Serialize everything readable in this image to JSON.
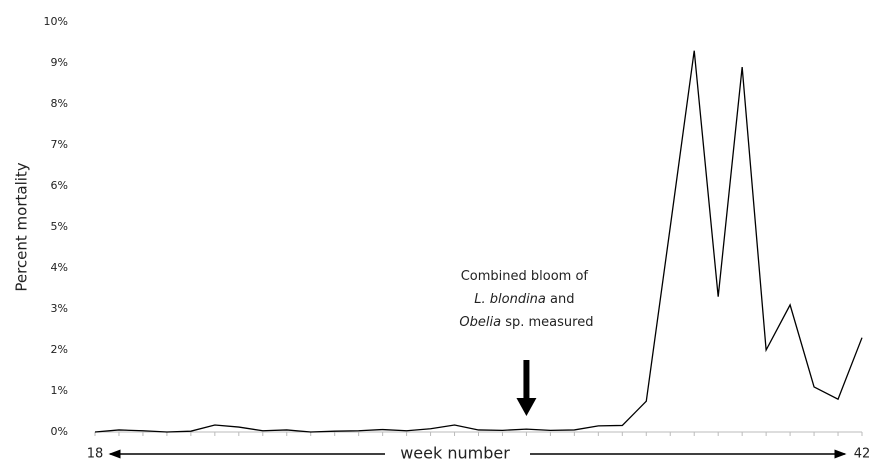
{
  "chart_data": {
    "type": "line",
    "y_label": "Percent mortality",
    "x_label": "week number",
    "categories": [
      "18",
      null,
      null,
      null,
      null,
      null,
      null,
      null,
      null,
      null,
      null,
      null,
      null,
      null,
      null,
      null,
      null,
      null,
      null,
      null,
      null,
      null,
      null,
      null,
      null,
      null,
      null,
      null,
      null,
      null,
      null,
      null,
      "42"
    ],
    "series": [
      {
        "color": "#000000",
        "values": [
          0.0,
          0.05,
          0.03,
          0.0,
          0.02,
          0.17,
          0.12,
          0.03,
          0.05,
          0.0,
          0.02,
          0.03,
          0.06,
          0.03,
          0.08,
          0.17,
          0.05,
          0.04,
          0.07,
          0.04,
          0.05,
          0.15,
          0.16,
          0.75,
          5.0,
          9.3,
          3.3,
          8.9,
          2.0,
          3.1,
          1.1,
          0.8,
          2.3
        ]
      }
    ],
    "ylim": [
      0,
      10
    ],
    "yticks": [
      {
        "value": 0,
        "label": "0%"
      },
      {
        "value": 1,
        "label": "1%"
      },
      {
        "value": 2,
        "label": "2%"
      },
      {
        "value": 3,
        "label": "3%"
      },
      {
        "value": 4,
        "label": "4%"
      },
      {
        "value": 5,
        "label": "5%"
      },
      {
        "value": 6,
        "label": "6%"
      },
      {
        "value": 7,
        "label": "7%"
      },
      {
        "value": 8,
        "label": "8%"
      },
      {
        "value": 9,
        "label": "9%"
      },
      {
        "value": 10,
        "label": "10%"
      }
    ],
    "grid": false,
    "annotation": {
      "line1": "Combined bloom of",
      "italic1": "L. blondina",
      "text2": " and",
      "italic2": "Obelia",
      "text3": " sp. measured",
      "category_index": 18
    }
  }
}
